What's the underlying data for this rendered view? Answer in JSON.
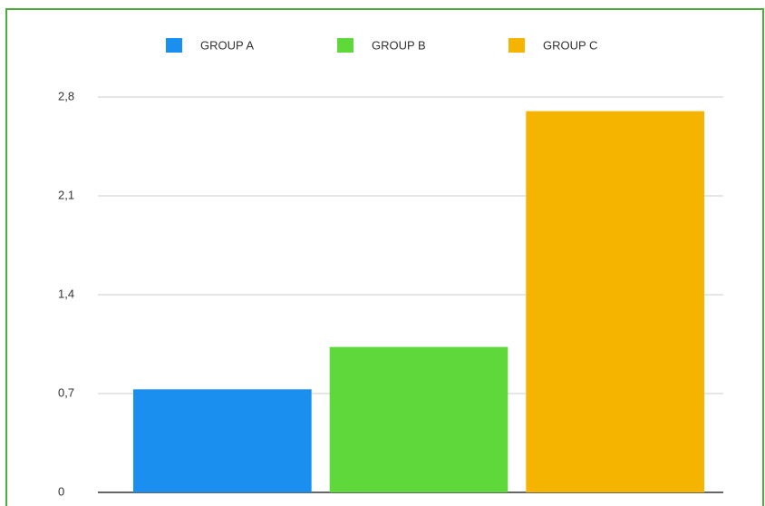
{
  "chart_data": {
    "type": "bar",
    "series": [
      {
        "name": "GROUP A",
        "color": "#1a8ff0",
        "values": [
          0.73
        ]
      },
      {
        "name": "GROUP B",
        "color": "#5fd83c",
        "values": [
          1.03
        ]
      },
      {
        "name": "GROUP C",
        "color": "#f4b400",
        "values": [
          2.7
        ]
      }
    ],
    "ylim": [
      0,
      2.8
    ],
    "yticks": [
      0,
      {
        "value": 0.7,
        "label": "0,7"
      },
      {
        "value": 1.4,
        "label": "1,4"
      },
      {
        "value": 2.1,
        "label": "2,1"
      },
      {
        "value": 2.8,
        "label": "2,8"
      }
    ],
    "grid": true,
    "legend": "top"
  }
}
